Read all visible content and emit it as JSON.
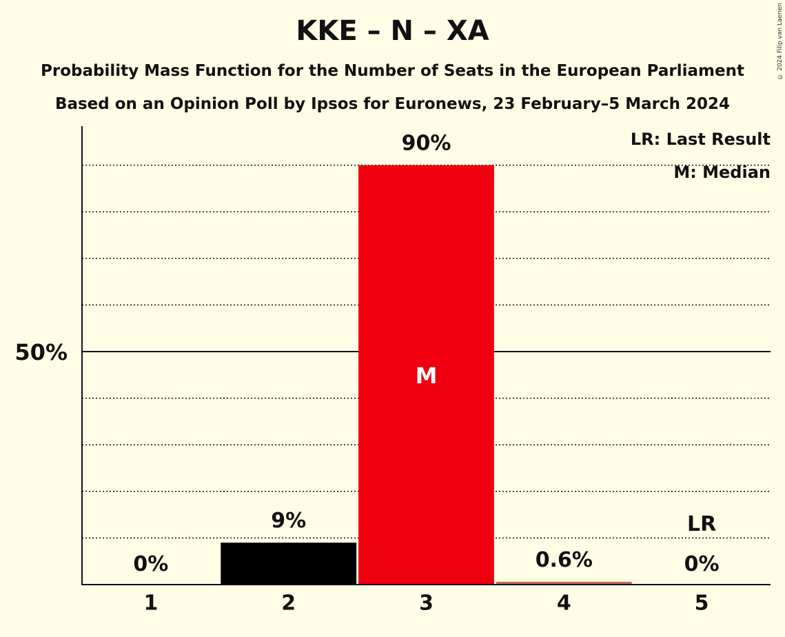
{
  "title": "KKE – N – XA",
  "subtitle_1": "Probability Mass Function for the Number of Seats in the European Parliament",
  "subtitle_2": "Based on an Opinion Poll by Ipsos for Euronews, 23 February–5 March 2024",
  "copyright": "© 2024 Filip van Laenen",
  "legend": {
    "last_result": "LR: Last Result",
    "median": "M: Median"
  },
  "colors": {
    "background": "#FFFDE6",
    "party": "#F0000F",
    "secondary": "#000000",
    "tail": "#C2684F"
  },
  "chart_data": {
    "type": "bar",
    "categories": [
      "1",
      "2",
      "3",
      "4",
      "5"
    ],
    "values": [
      0,
      9,
      90,
      0.6,
      0
    ],
    "value_labels": [
      "0%",
      "9%",
      "90%",
      "0.6%",
      "0%"
    ],
    "bar_colors": [
      "#000000",
      "#000000",
      "#F0000F",
      "#C2684F",
      "#000000"
    ],
    "median_category": "3",
    "median_marker": "M",
    "last_result_category": "5",
    "last_result_marker": "LR",
    "y_tick_label": "50%",
    "y_tick_value": 50,
    "ylim": [
      0,
      98
    ],
    "grid_step": 10,
    "legend_position": "top-right"
  }
}
